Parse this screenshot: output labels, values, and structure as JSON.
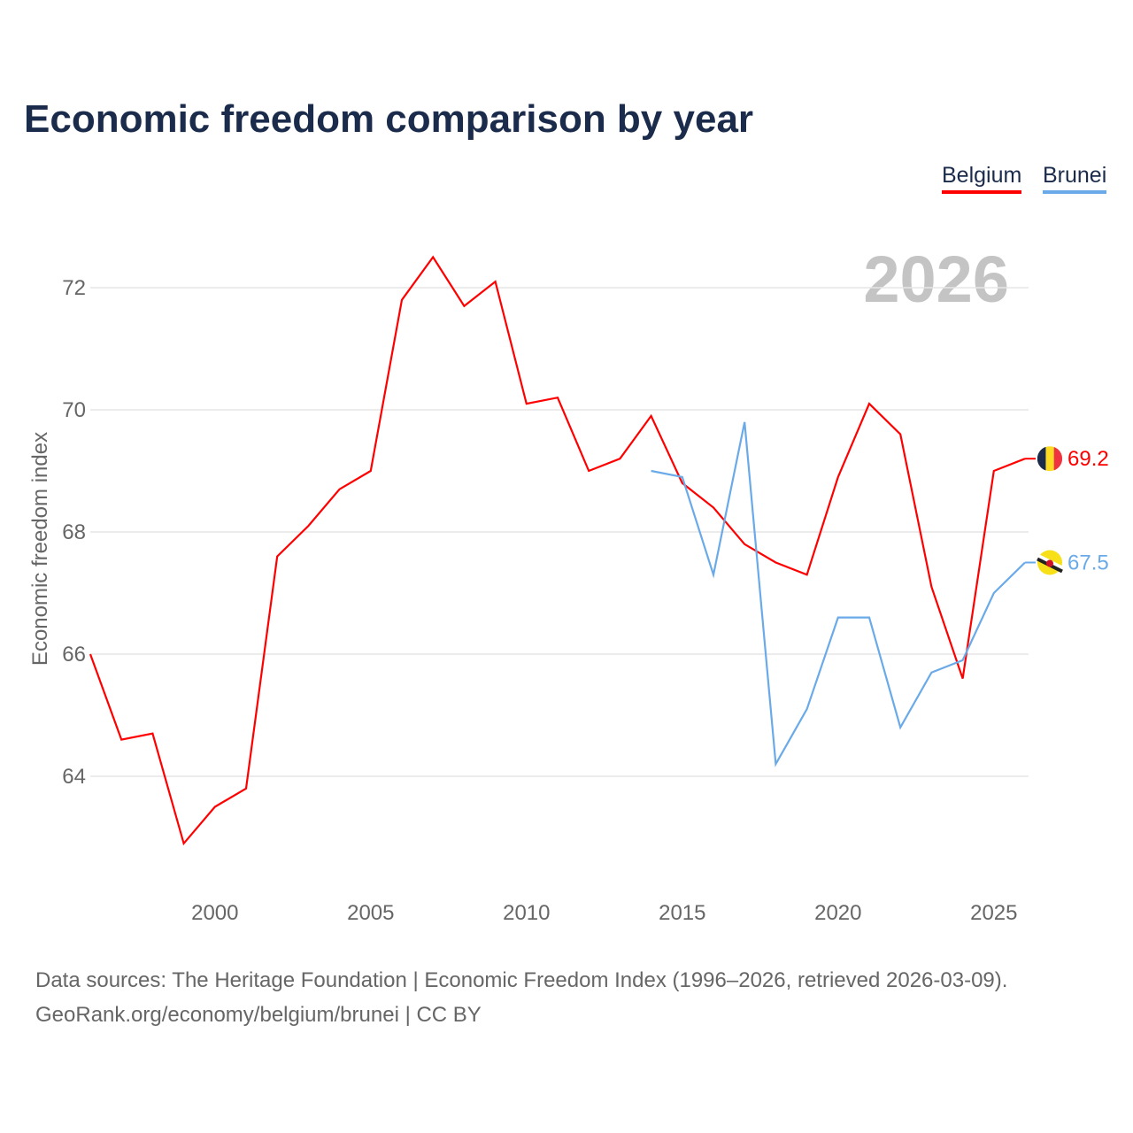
{
  "title": "Economic freedom comparison by year",
  "year_label": "2026",
  "source_line1": "Data sources: The Heritage Foundation | Economic Freedom Index (1996–2026, retrieved 2026-03-09).",
  "source_line2": "GeoRank.org/economy/belgium/brunei | CC BY",
  "chart_data": {
    "type": "line",
    "title": "Economic freedom comparison by year",
    "xlabel": "",
    "ylabel": "Economic freedom index",
    "xlim": [
      1996,
      2026
    ],
    "ylim": [
      62.7,
      73.0
    ],
    "xticks": [
      2000,
      2005,
      2010,
      2015,
      2020,
      2025
    ],
    "yticks": [
      64,
      66,
      68,
      70,
      72
    ],
    "grid": true,
    "legend_position": "top-right",
    "series": [
      {
        "name": "Belgium",
        "color": "#ff0000",
        "end_label": "69.2",
        "x": [
          1996,
          1997,
          1998,
          1999,
          2000,
          2001,
          2002,
          2003,
          2004,
          2005,
          2006,
          2007,
          2008,
          2009,
          2010,
          2011,
          2012,
          2013,
          2014,
          2015,
          2016,
          2017,
          2018,
          2019,
          2020,
          2021,
          2022,
          2023,
          2024,
          2025,
          2026
        ],
        "values": [
          66.0,
          64.6,
          64.7,
          62.9,
          63.5,
          63.8,
          67.6,
          68.1,
          68.7,
          69.0,
          71.8,
          72.5,
          71.7,
          72.1,
          70.1,
          70.2,
          69.0,
          69.2,
          69.9,
          68.8,
          68.4,
          67.8,
          67.5,
          67.3,
          68.9,
          70.1,
          69.6,
          67.1,
          65.6,
          69.0,
          69.2
        ]
      },
      {
        "name": "Brunei",
        "color": "#6aaae8",
        "end_label": "67.5",
        "x": [
          2014,
          2015,
          2016,
          2017,
          2018,
          2019,
          2020,
          2021,
          2022,
          2023,
          2024,
          2025,
          2026
        ],
        "values": [
          69.0,
          68.9,
          67.3,
          69.8,
          64.2,
          65.1,
          66.6,
          66.6,
          64.8,
          65.7,
          65.9,
          67.0,
          67.5
        ]
      }
    ]
  }
}
